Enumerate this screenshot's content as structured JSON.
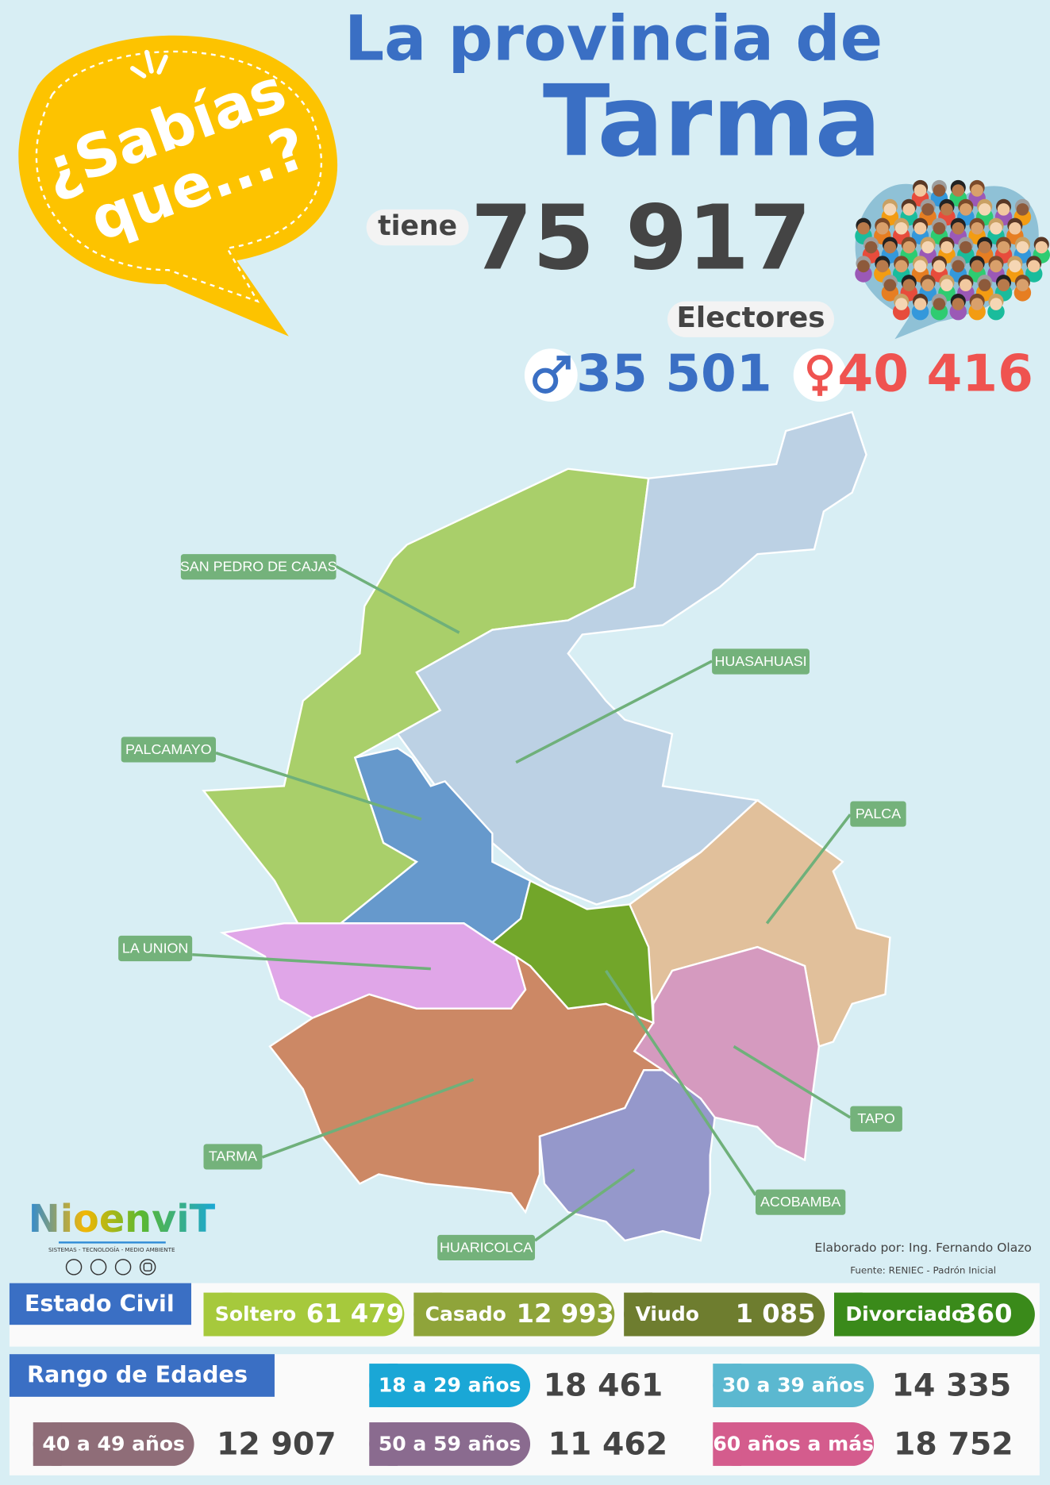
{
  "badge": {
    "line1": "¿Sabías",
    "line2": "que...?"
  },
  "header": {
    "title_line1": "La provincia de",
    "title_line2": "Tarma",
    "tiene": "tiene",
    "electores_total": "75 917",
    "electores_label": "Electores",
    "male": "35 501",
    "female": "40 416"
  },
  "map": {
    "districts": [
      "SAN PEDRO DE CAJAS",
      "HUASAHUASI",
      "PALCAMAYO",
      "PALCA",
      "LA UNION",
      "TARMA",
      "TAPO",
      "ACOBAMBA",
      "HUARICOLCA"
    ]
  },
  "logo": {
    "name": "NioenviT",
    "tagline": "SISTEMAS - TECNOLOGÍA - MEDIO AMBIENTE"
  },
  "credits": {
    "author": "Elaborado por: Ing. Fernando Olazo",
    "source": "Fuente: RENIEC - Padrón Inicial"
  },
  "estado_civil": {
    "title": "Estado Civil",
    "items": [
      {
        "label": "Soltero",
        "value": "61 479"
      },
      {
        "label": "Casado",
        "value": "12 993"
      },
      {
        "label": "Viudo",
        "value": "1 085"
      },
      {
        "label": "Divorciado",
        "value": "360"
      }
    ]
  },
  "rango_edades": {
    "title": "Rango de Edades",
    "items": [
      {
        "label": "18 a 29 años",
        "value": "18 461"
      },
      {
        "label": "30 a 39 años",
        "value": "14 335"
      },
      {
        "label": "40 a 49 años",
        "value": "12 907"
      },
      {
        "label": "50 a 59 años",
        "value": "11 462"
      },
      {
        "label": "60 años a más",
        "value": "18 752"
      }
    ]
  }
}
